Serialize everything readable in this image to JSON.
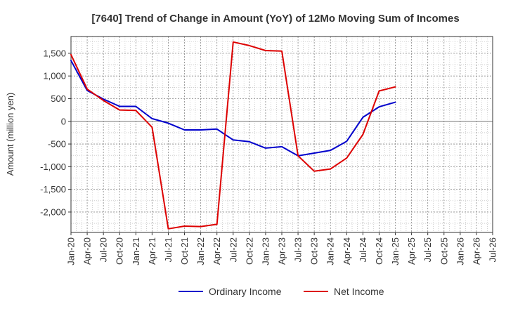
{
  "chart_data": {
    "type": "line",
    "title": "[7640]  Trend of Change in Amount (YoY) of 12Mo Moving Sum of Incomes",
    "ylabel": "Amount (million yen)",
    "xlabel": "",
    "ylim": [
      -2450,
      1870
    ],
    "yticks": [
      1500,
      1000,
      500,
      0,
      -500,
      -1000,
      -1500,
      -2000
    ],
    "ytick_labels": [
      "1,500",
      "1,000",
      "500",
      "0",
      "-500",
      "-1,000",
      "-1,500",
      "-2,000"
    ],
    "xtick_labels": [
      "Jan-20",
      "Apr-20",
      "Jul-20",
      "Oct-20",
      "Jan-21",
      "Apr-21",
      "Jul-21",
      "Oct-21",
      "Jan-22",
      "Apr-22",
      "Jul-22",
      "Oct-22",
      "Jan-23",
      "Apr-23",
      "Jul-23",
      "Oct-23",
      "Jan-24",
      "Apr-24",
      "Jul-24",
      "Oct-24",
      "Jan-25",
      "Apr-25",
      "Jul-25",
      "Oct-25",
      "Jan-26",
      "Apr-26",
      "Jul-26"
    ],
    "x_count": 23,
    "grid": true,
    "legend_position": "bottom",
    "series": [
      {
        "name": "Ordinary Income",
        "color": "#0000cc",
        "values": [
          1340,
          680,
          490,
          330,
          330,
          60,
          -40,
          -190,
          -190,
          -170,
          -410,
          -450,
          -590,
          -560,
          -760,
          -700,
          -640,
          -440,
          90,
          320,
          420
        ]
      },
      {
        "name": "Net Income",
        "color": "#dd0000",
        "values": [
          1470,
          710,
          460,
          250,
          240,
          -130,
          -2370,
          -2310,
          -2320,
          -2270,
          1750,
          1670,
          1560,
          1550,
          -760,
          -1100,
          -1050,
          -810,
          -290,
          670,
          760
        ]
      }
    ]
  }
}
